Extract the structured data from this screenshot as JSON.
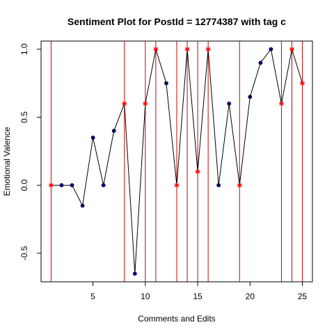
{
  "chart_data": {
    "type": "line",
    "title": "Sentiment Plot for PostId =  12774387  with tag  c",
    "xlabel": "Comments and Edits",
    "ylabel": "Emotional Valence",
    "xlim": [
      0.04,
      25.96
    ],
    "ylim": [
      -0.71,
      1.06
    ],
    "xticks": [
      5,
      10,
      15,
      20,
      25
    ],
    "yticks": [
      -0.5,
      0.0,
      0.5,
      1.0
    ],
    "ytick_labels": [
      "-0.5",
      "0.0",
      "0.5",
      "1.0"
    ],
    "grid": false,
    "x": [
      1,
      2,
      3,
      4,
      5,
      6,
      7,
      8,
      9,
      10,
      11,
      12,
      13,
      14,
      15,
      16,
      17,
      18,
      19,
      20,
      21,
      22,
      23,
      24,
      25
    ],
    "y": [
      0.0,
      0.0,
      0.0,
      -0.15,
      0.35,
      0.0,
      0.4,
      0.6,
      -0.65,
      0.6,
      1.0,
      0.75,
      0.0,
      1.0,
      0.1,
      1.0,
      0.0,
      0.6,
      0.0,
      0.65,
      0.9,
      1.0,
      0.6,
      1.0,
      0.75
    ],
    "edit_points": [
      1,
      8,
      10,
      11,
      13,
      14,
      15,
      16,
      19,
      23,
      24,
      25
    ],
    "vertical_lines_x": [
      1,
      8,
      10,
      11,
      13,
      14,
      15,
      16,
      19,
      23,
      24,
      25
    ],
    "colors": {
      "line": "#000000",
      "comment_point": "#00008b",
      "edit_point": "#ff0000",
      "vertical_line": "#cc0000"
    }
  }
}
